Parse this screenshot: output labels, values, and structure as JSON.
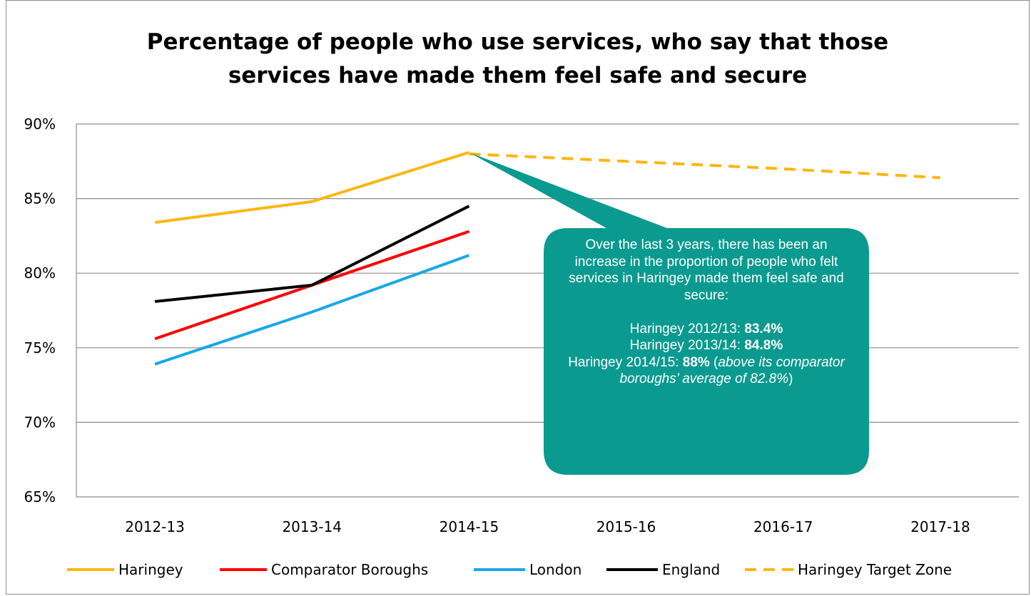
{
  "chart_data": {
    "type": "line",
    "title": [
      "Percentage of people who use services, who say that those",
      "services have made them feel safe and secure"
    ],
    "categories": [
      "2012-13",
      "2013-14",
      "2014-15",
      "2015-16",
      "2016-17",
      "2017-18"
    ],
    "ylim": [
      65,
      90
    ],
    "yticks": [
      90,
      85,
      80,
      75,
      70,
      65
    ],
    "ytick_labels": [
      "90%",
      "85%",
      "80%",
      "75%",
      "70%",
      "65%"
    ],
    "grid": true,
    "legend_position": "bottom",
    "series": [
      {
        "name": "Haringey",
        "values": [
          83.4,
          84.8,
          88.1,
          null,
          null,
          null
        ],
        "color": "#ffb612",
        "dash": false
      },
      {
        "name": "Comparator Boroughs",
        "values": [
          75.6,
          79.2,
          82.8,
          null,
          null,
          null
        ],
        "color": "#ff0000",
        "dash": false
      },
      {
        "name": "London",
        "values": [
          73.9,
          77.4,
          81.2,
          null,
          null,
          null
        ],
        "color": "#1aa7e6",
        "dash": false
      },
      {
        "name": "England",
        "values": [
          78.1,
          79.2,
          84.5,
          null,
          null,
          null
        ],
        "color": "#000000",
        "dash": false
      },
      {
        "name": "Haringey Target Zone",
        "values": [
          null,
          null,
          88.0,
          87.5,
          87.0,
          86.4
        ],
        "color": "#ffb612",
        "dash": true
      }
    ],
    "annotation": {
      "color": "#0b9a8f",
      "lines": [
        "Over the last 3 years, there has been an increase in the proportion of people who felt services in Haringey made them feel safe and secure:",
        "Haringey 2012/13: ",
        "83.4%",
        "Haringey 2013/14: ",
        "84.8%",
        "Haringey 2014/15: ",
        "88%",
        " (",
        "above its comparator boroughs’ average of 82.8%",
        ")"
      ]
    }
  }
}
